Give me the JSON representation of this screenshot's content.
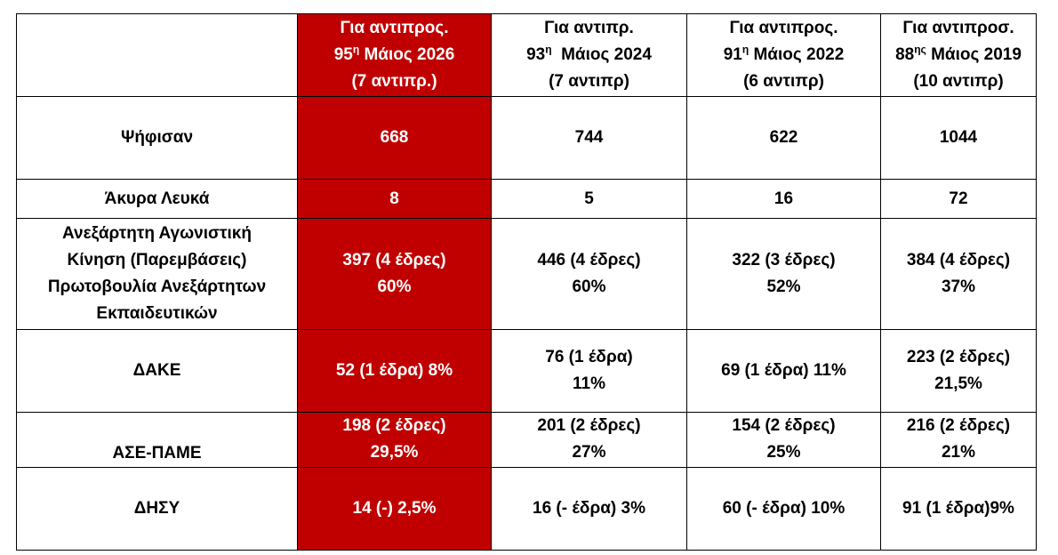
{
  "header": {
    "columns": [
      {
        "line1": "Για αντιπρος.",
        "num": "95",
        "sup": "η",
        "line2": "Μάιος 2026",
        "line3": "(7 αντιπρ.)"
      },
      {
        "line1": "Για αντιπρ.",
        "num": "93",
        "sup": "η",
        "line2": " Μάιος 2024",
        "line3": "(7 αντιπρ)"
      },
      {
        "line1": "Για αντιπρος.",
        "num": "91",
        "sup": "η",
        "line2": "Μάιος 2022",
        "line3": "(6 αντιπρ)"
      },
      {
        "line1": "Για αντιπροσ.",
        "num": "88",
        "sup": "ης",
        "line2": "Μάιος 2019",
        "line3": "(10 αντιπρ)"
      }
    ]
  },
  "table": {
    "rows": [
      {
        "label": [
          "Ψήφισαν"
        ],
        "cells": [
          [
            "668"
          ],
          [
            "744"
          ],
          [
            "622"
          ],
          [
            "1044"
          ]
        ]
      },
      {
        "label": [
          "Άκυρα Λευκά"
        ],
        "cells": [
          [
            "8"
          ],
          [
            "5"
          ],
          [
            "16"
          ],
          [
            "72"
          ]
        ]
      },
      {
        "label": [
          "Ανεξάρτητη Αγωνιστική",
          "Κίνηση (Παρεμβάσεις)",
          "Πρωτοβουλία Ανεξάρτητων",
          "Εκπαιδευτικών"
        ],
        "cells": [
          [
            "397 (4 έδρες)",
            "60%"
          ],
          [
            "446 (4 έδρες)",
            "60%"
          ],
          [
            "322 (3 έδρες)",
            "52%"
          ],
          [
            "384 (4 έδρες)",
            "37%"
          ]
        ]
      },
      {
        "label": [
          "ΔΑΚΕ"
        ],
        "cells": [
          [
            "52 (1 έδρα) 8%"
          ],
          [
            "76 (1 έδρα)",
            "11%"
          ],
          [
            "69 (1 έδρα) 11%"
          ],
          [
            "223 (2 έδρες)",
            "21,5%"
          ]
        ]
      },
      {
        "label": [
          "ΑΣΕ-ΠΑΜΕ"
        ],
        "cells": [
          [
            "198 (2 έδρες)",
            "29,5%"
          ],
          [
            "201 (2 έδρες)",
            "27%"
          ],
          [
            "154 (2 έδρες)",
            "25%"
          ],
          [
            "216 (2 έδρες)",
            "21%"
          ]
        ]
      },
      {
        "label": [
          "ΔΗΣΥ"
        ],
        "cells": [
          [
            "14 (-) 2,5%"
          ],
          [
            "16 (- έδρα) 3%"
          ],
          [
            "60 (- έδρα) 10%"
          ],
          [
            "91 (1 έδρα)9%"
          ]
        ]
      }
    ]
  }
}
